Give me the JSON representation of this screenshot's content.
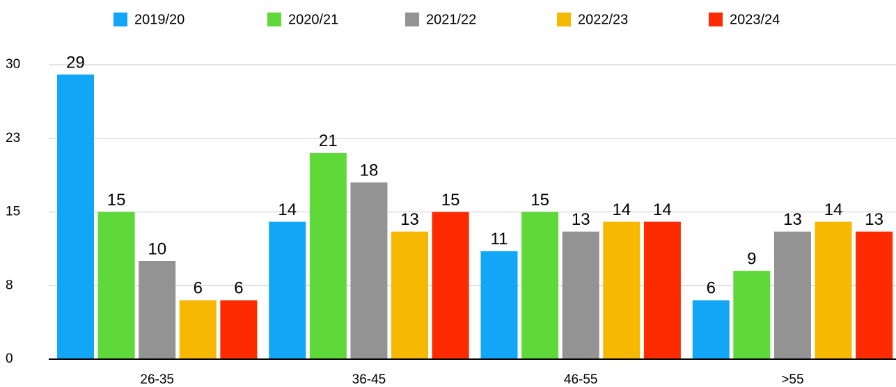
{
  "chart_data": {
    "type": "bar",
    "categories": [
      "26-35",
      "36-45",
      "46-55",
      ">55"
    ],
    "series": [
      {
        "name": "2019/20",
        "color": "#12a7f6",
        "values": [
          29,
          14,
          11,
          6
        ]
      },
      {
        "name": "2020/21",
        "color": "#5fd83a",
        "values": [
          15,
          21,
          15,
          9
        ]
      },
      {
        "name": "2021/22",
        "color": "#939393",
        "values": [
          10,
          18,
          13,
          13
        ]
      },
      {
        "name": "2022/23",
        "color": "#f6b800",
        "values": [
          6,
          13,
          14,
          14
        ]
      },
      {
        "name": "2023/24",
        "color": "#fe2a00",
        "values": [
          6,
          15,
          14,
          13
        ]
      }
    ],
    "ylim": [
      0,
      30
    ],
    "yticks": [
      0,
      {
        "value": 7.5,
        "label": "8"
      },
      15,
      {
        "value": 22.5,
        "label": "23"
      },
      30
    ],
    "grid": true,
    "legend": "top"
  }
}
